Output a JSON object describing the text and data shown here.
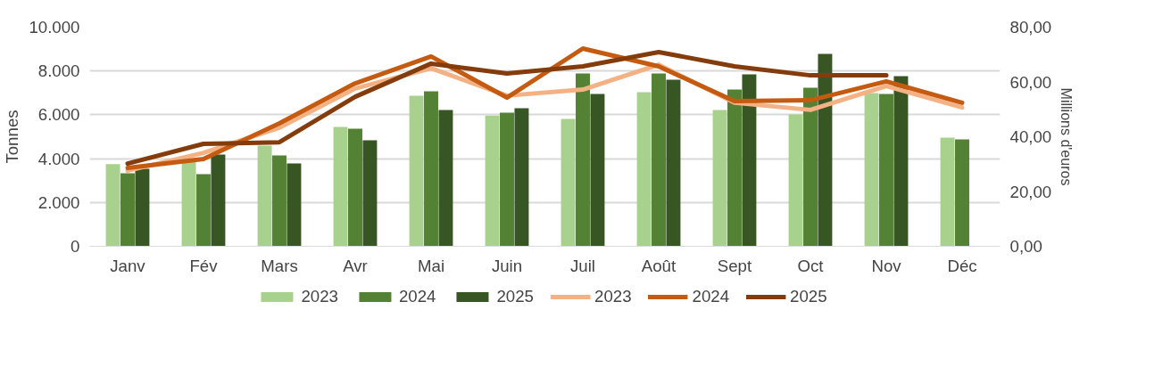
{
  "chart_data": {
    "type": "bar",
    "xlabel": null,
    "ylabel": "Tonnes",
    "y2label": "Millions d'euros",
    "categories": [
      "Janv",
      "Fév",
      "Mars",
      "Avr",
      "Mai",
      "Juin",
      "Juil",
      "Août",
      "Sept",
      "Oct",
      "Nov",
      "Déc"
    ],
    "series": [
      {
        "name": "2023",
        "color": "#a9d18e",
        "values": [
          3750,
          3940,
          4590,
          5450,
          6870,
          5970,
          5810,
          7030,
          6220,
          6020,
          6990,
          4960
        ]
      },
      {
        "name": "2024",
        "color": "#548235",
        "values": [
          3330,
          3290,
          4150,
          5370,
          7070,
          6100,
          7890,
          7890,
          7150,
          7240,
          6950,
          4880
        ]
      },
      {
        "name": "2025",
        "color": "#375623",
        "values": [
          3540,
          4190,
          3780,
          4840,
          6220,
          6300,
          6950,
          7600,
          7850,
          8780,
          7760,
          null
        ]
      },
      {
        "name": "2023",
        "type": "line",
        "axis": "y2",
        "color": "#f4b183",
        "values": [
          27.6,
          34.1,
          43.3,
          57.6,
          65.0,
          55.0,
          57.2,
          66.3,
          52.4,
          49.8,
          58.5,
          50.7
        ]
      },
      {
        "name": "2024",
        "type": "line",
        "axis": "y2",
        "color": "#c55a11",
        "values": [
          28.6,
          31.9,
          44.9,
          59.5,
          69.3,
          54.3,
          72.2,
          65.7,
          53.0,
          53.3,
          60.2,
          52.4
        ]
      },
      {
        "name": "2025",
        "type": "line",
        "axis": "y2",
        "color": "#843c0c",
        "values": [
          30.2,
          37.4,
          38.0,
          54.6,
          66.7,
          63.1,
          65.7,
          70.9,
          65.7,
          62.4,
          62.4,
          null
        ]
      }
    ],
    "ylim": [
      0,
      10000
    ],
    "yticks": [
      {
        "value": 0,
        "label": "0"
      },
      {
        "value": 2000,
        "label": "2.000"
      },
      {
        "value": 4000,
        "label": "4.000"
      },
      {
        "value": 6000,
        "label": "6.000"
      },
      {
        "value": 8000,
        "label": "8.000"
      },
      {
        "value": 10000,
        "label": "10.000"
      }
    ],
    "y2lim": [
      0,
      80
    ],
    "y2ticks": [
      {
        "value": 0,
        "label": "0,00"
      },
      {
        "value": 20,
        "label": "20,00"
      },
      {
        "value": 40,
        "label": "40,00"
      },
      {
        "value": 60,
        "label": "60,00"
      },
      {
        "value": 80,
        "label": "80,00"
      }
    ],
    "grid": "y",
    "legend": "bottom",
    "line_style": "solid",
    "marker": "none"
  }
}
